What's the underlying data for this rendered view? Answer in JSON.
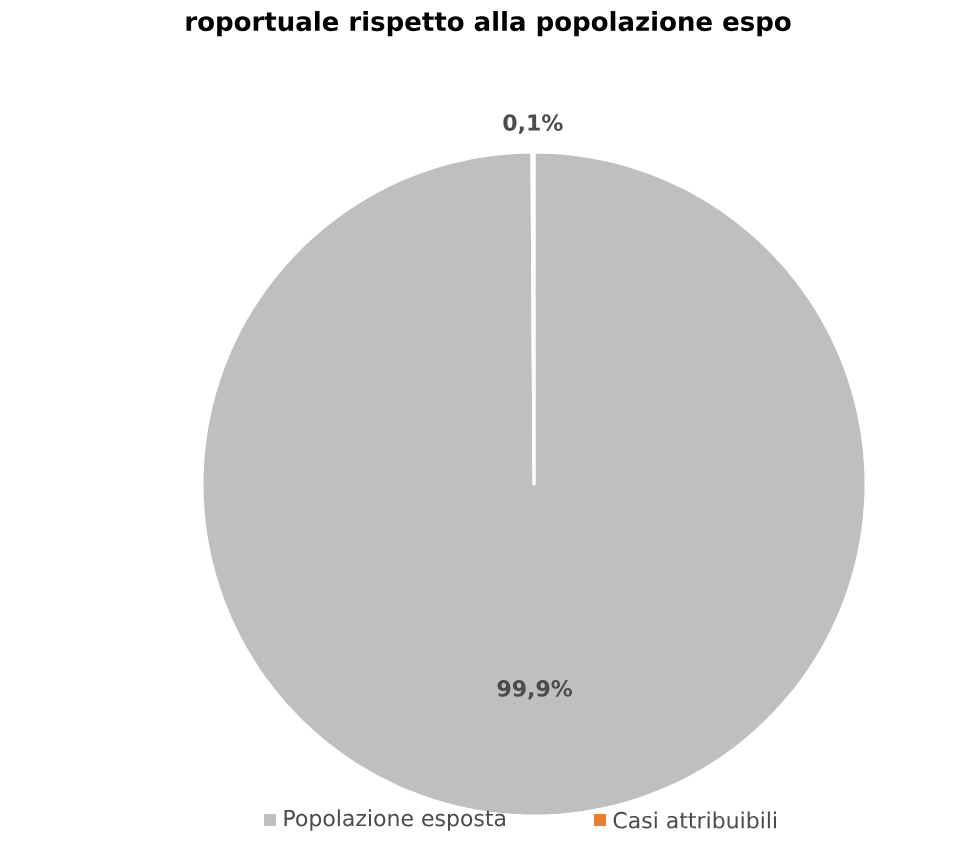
{
  "chart_data": {
    "type": "pie",
    "title": "roportuale rispetto alla popolazione espo",
    "categories": [
      "Popolazione esposta",
      "Casi attribuibili"
    ],
    "values": [
      99.9,
      0.1
    ],
    "colors": [
      "#bfbfbf",
      "#ed7d31"
    ],
    "value_labels": [
      "99,9%",
      "0,1%"
    ],
    "legend": "bottom"
  }
}
